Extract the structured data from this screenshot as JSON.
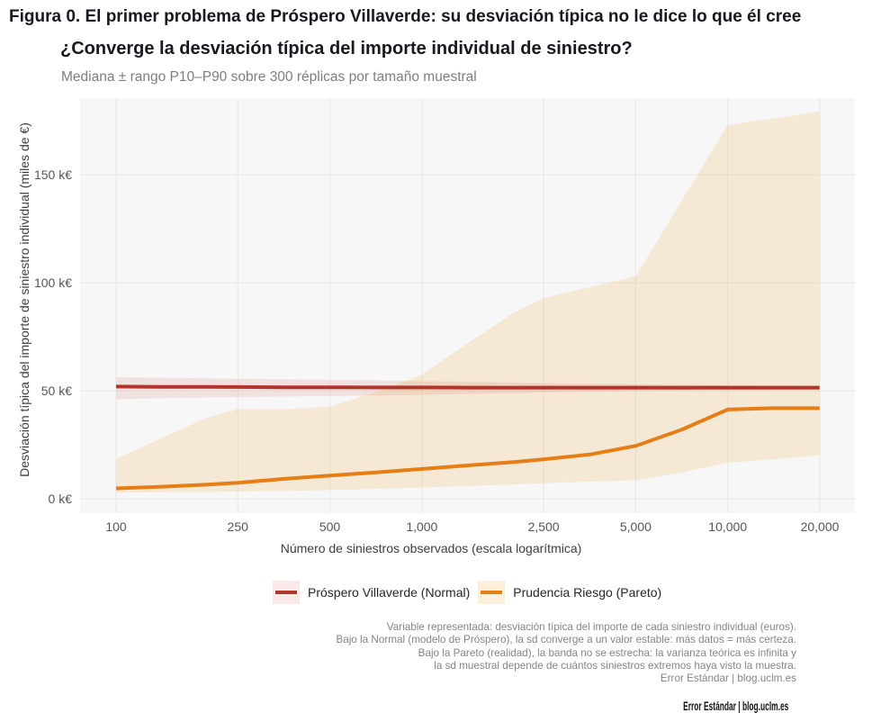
{
  "figure_title": "Figura 0. El primer problema de Próspero Villaverde: su desviación típica no le dice lo que él cree",
  "chart": {
    "title": "¿Converge la desviación típica del importe individual de siniestro?",
    "subtitle": "Mediana ± rango P10–P90 sobre 300 réplicas por tamaño muestral"
  },
  "legend": {
    "items": [
      {
        "label": "Próspero Villaverde (Normal)"
      },
      {
        "label": "Prudencia Riesgo (Pareto)"
      }
    ]
  },
  "caption": {
    "lines": [
      "Variable representada: desviación típica del importe de cada siniestro individual (euros).",
      "Bajo la Normal (modelo de Próspero), la sd converge a un valor estable: más datos = más certeza.",
      "Bajo la Pareto (realidad), la banda no se estrecha: la varianza teórica es infinita y",
      "la sd muestral depende de cuántos siniestros extremos haya visto la muestra.",
      "Error Estándar | blog.uclm.es"
    ]
  },
  "footer": "Error Estándar | blog.uclm.es",
  "chart_data": {
    "type": "line",
    "title": "¿Converge la desviación típica del importe individual de siniestro?",
    "subtitle": "Mediana ± rango P10–P90 sobre 300 réplicas por tamaño muestral",
    "xlabel": "Número de siniestros observados (escala logarítmica)",
    "ylabel": "Desviación típica del importe de siniestro individual (miles de €)",
    "x_scale": "log10",
    "grid": true,
    "legend_position": "bottom",
    "x_ticks": [
      100,
      250,
      500,
      1000,
      2500,
      5000,
      10000,
      20000
    ],
    "x_tick_labels": [
      "100",
      "250",
      "500",
      "1,000",
      "2,500",
      "5,000",
      "10,000",
      "20,000"
    ],
    "y_ticks": [
      0,
      50,
      100,
      150
    ],
    "y_tick_labels": [
      "0 k€",
      "50 k€",
      "100 k€",
      "150 k€"
    ],
    "y_unit": "k€",
    "x": [
      100,
      141,
      200,
      251,
      355,
      501,
      708,
      1000,
      1413,
      1995,
      2512,
      3548,
      5012,
      7079,
      10000,
      14125,
      19953
    ],
    "series": [
      {
        "id": "pareto",
        "name": "Prudencia Riesgo (Pareto)",
        "color": "#e67d15",
        "fill": "rgba(238,162,48,0.17)",
        "median": [
          4.8,
          5.6,
          6.6,
          7.4,
          9.2,
          10.7,
          12.2,
          13.8,
          15.4,
          17.0,
          18.3,
          20.5,
          24.5,
          32.0,
          41.3,
          41.9,
          41.9
        ],
        "p10": [
          2.8,
          3.0,
          3.2,
          3.3,
          3.6,
          4.0,
          4.6,
          5.2,
          5.9,
          6.6,
          7.2,
          7.9,
          8.6,
          12.2,
          16.7,
          18.3,
          20.1
        ],
        "p90": [
          18.5,
          28.0,
          37.8,
          41.5,
          41.4,
          42.6,
          49.5,
          57.5,
          72.0,
          86.0,
          93.0,
          98.0,
          103.0,
          138.0,
          173.0,
          176.0,
          179.3
        ]
      },
      {
        "id": "normal",
        "name": "Próspero Villaverde (Normal)",
        "color": "#b13528",
        "fill": "rgba(200,50,35,0.10)",
        "median": [
          51.9,
          51.8,
          51.8,
          51.7,
          51.6,
          51.6,
          51.5,
          51.5,
          51.4,
          51.4,
          51.4,
          51.4,
          51.4,
          51.4,
          51.4,
          51.4,
          51.4
        ],
        "p10": [
          46.0,
          46.5,
          46.9,
          47.1,
          47.3,
          47.5,
          47.8,
          48.1,
          48.5,
          48.9,
          49.2,
          49.5,
          49.8,
          50.1,
          50.3,
          50.5,
          50.6
        ],
        "p90": [
          56.3,
          56.0,
          55.7,
          55.5,
          55.3,
          55.1,
          54.8,
          54.5,
          54.1,
          53.8,
          53.5,
          53.2,
          53.0,
          52.7,
          52.5,
          52.4,
          52.3
        ]
      }
    ],
    "colors": {
      "panel": "#f7f7f7",
      "grid": "#e9e9e9",
      "tick": "#555555"
    }
  }
}
